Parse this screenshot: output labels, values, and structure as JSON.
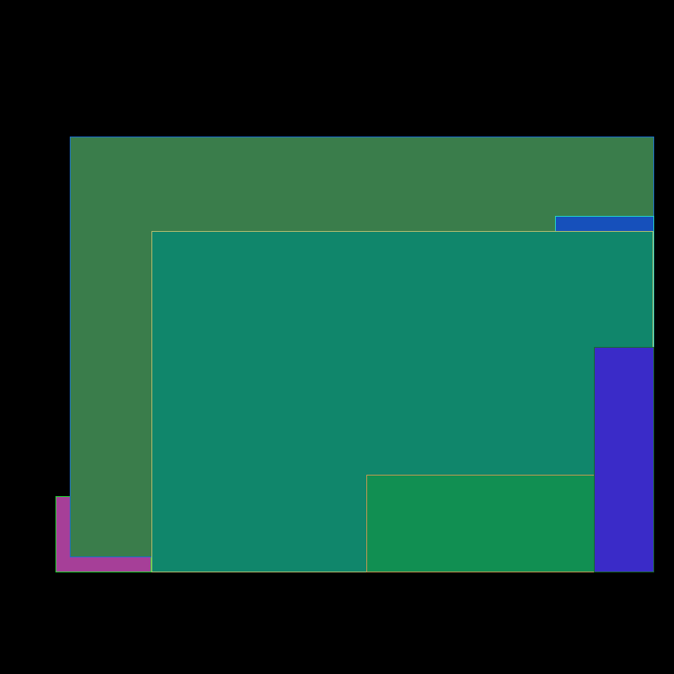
{
  "background": "#000000",
  "rectangles": [
    {
      "id": "magenta",
      "fill": "#a63f98",
      "border": "#22dd33"
    },
    {
      "id": "olive-green",
      "fill": "#3a7d4b",
      "border": "#1a6fd0"
    },
    {
      "id": "blue",
      "fill": "#1650bb",
      "border": "#22d8c8"
    },
    {
      "id": "teal",
      "fill": "#10866b",
      "border": "#b8c070"
    },
    {
      "id": "green",
      "fill": "#118f52",
      "border": "#c89a50"
    },
    {
      "id": "violet",
      "fill": "#3a2bc8",
      "border": "#186a2a"
    }
  ]
}
